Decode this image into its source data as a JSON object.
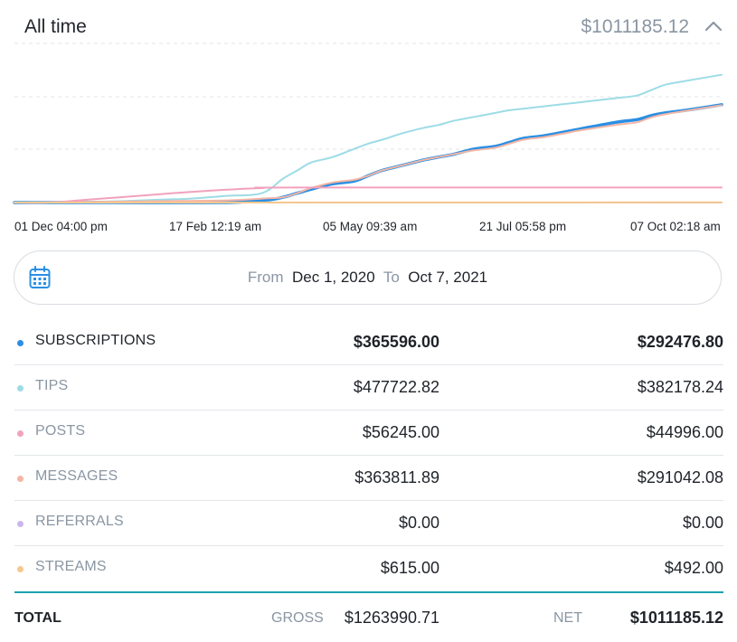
{
  "header": {
    "title": "All time",
    "total": "$1011185.12",
    "collapse_icon": "chevron-up-icon"
  },
  "chart_data": {
    "type": "line",
    "x_ticks": [
      "01 Dec 04:00 pm",
      "17 Feb 12:19 am",
      "05 May 09:39 am",
      "21 Jul 05:58 pm",
      "07 Oct 02:18 am"
    ],
    "grid": true,
    "series": [
      {
        "name": "TIPS",
        "color": "#9ddce6",
        "x": [
          0.0,
          0.05,
          0.1,
          0.15,
          0.2,
          0.25,
          0.3,
          0.35,
          0.38,
          0.4,
          0.42,
          0.45,
          0.48,
          0.5,
          0.52,
          0.55,
          0.58,
          0.6,
          0.62,
          0.65,
          0.68,
          0.7,
          0.75,
          0.8,
          0.85,
          0.88,
          0.9,
          0.92,
          0.95,
          1.0
        ],
        "values": [
          0,
          0,
          2000,
          5000,
          10000,
          15000,
          25000,
          35000,
          90000,
          120000,
          150000,
          170000,
          200000,
          220000,
          235000,
          260000,
          280000,
          290000,
          305000,
          320000,
          335000,
          345000,
          360000,
          375000,
          390000,
          400000,
          420000,
          440000,
          455000,
          477722.82
        ]
      },
      {
        "name": "SUBSCRIPTIONS",
        "color": "#2a8fe4",
        "x": [
          0.0,
          0.1,
          0.3,
          0.33,
          0.36,
          0.38,
          0.4,
          0.42,
          0.45,
          0.48,
          0.5,
          0.52,
          0.55,
          0.58,
          0.6,
          0.62,
          0.65,
          0.68,
          0.7,
          0.72,
          0.75,
          0.78,
          0.8,
          0.85,
          0.88,
          0.9,
          0.92,
          0.95,
          1.0
        ],
        "values": [
          0,
          0,
          0,
          8000,
          10000,
          20000,
          35000,
          50000,
          70000,
          80000,
          100000,
          120000,
          140000,
          160000,
          170000,
          180000,
          200000,
          210000,
          225000,
          240000,
          250000,
          265000,
          275000,
          300000,
          310000,
          325000,
          335000,
          345000,
          365596.0
        ]
      },
      {
        "name": "MESSAGES",
        "color": "#f4b6a5",
        "x": [
          0.0,
          0.1,
          0.2,
          0.3,
          0.35,
          0.38,
          0.4,
          0.42,
          0.45,
          0.48,
          0.5,
          0.52,
          0.55,
          0.58,
          0.6,
          0.62,
          0.65,
          0.68,
          0.7,
          0.72,
          0.75,
          0.78,
          0.8,
          0.85,
          0.88,
          0.9,
          0.92,
          0.95,
          1.0
        ],
        "values": [
          0,
          2000,
          5000,
          8000,
          15000,
          20000,
          35000,
          55000,
          75000,
          85000,
          100000,
          120000,
          140000,
          160000,
          170000,
          180000,
          195000,
          205000,
          220000,
          235000,
          245000,
          260000,
          270000,
          290000,
          300000,
          318000,
          330000,
          343000,
          363811.89
        ]
      },
      {
        "name": "POSTS",
        "color": "#f2a1bd",
        "x": [
          0.0,
          0.05,
          0.1,
          0.15,
          0.2,
          0.25,
          0.3,
          0.35,
          0.4,
          1.0
        ],
        "values": [
          0,
          0,
          10000,
          20000,
          30000,
          40000,
          48000,
          54000,
          56245,
          56245.0
        ]
      },
      {
        "name": "REFERRALS",
        "color": "#c9b7ec",
        "x": [
          0.0,
          1.0
        ],
        "values": [
          0,
          0
        ]
      },
      {
        "name": "STREAMS",
        "color": "#f6c88f",
        "x": [
          0.0,
          1.0
        ],
        "values": [
          0,
          615.0
        ]
      }
    ],
    "ylim": [
      0,
      480000
    ]
  },
  "date_range": {
    "icon": "calendar-icon",
    "from_label": "From",
    "from_value": "Dec 1, 2020",
    "to_label": "To",
    "to_value": "Oct 7, 2021"
  },
  "rows": [
    {
      "label": "SUBSCRIPTIONS",
      "gross": "$365596.00",
      "net": "$292476.80",
      "color": "#2a8fe4"
    },
    {
      "label": "TIPS",
      "gross": "$477722.82",
      "net": "$382178.24",
      "color": "#9ddce6"
    },
    {
      "label": "POSTS",
      "gross": "$56245.00",
      "net": "$44996.00",
      "color": "#f2a1bd"
    },
    {
      "label": "MESSAGES",
      "gross": "$363811.89",
      "net": "$291042.08",
      "color": "#f4b6a5"
    },
    {
      "label": "REFERRALS",
      "gross": "$0.00",
      "net": "$0.00",
      "color": "#c9b7ec"
    },
    {
      "label": "STREAMS",
      "gross": "$615.00",
      "net": "$492.00",
      "color": "#f6c88f"
    }
  ],
  "total": {
    "label": "TOTAL",
    "gross_label": "GROSS",
    "gross_value": "$1263990.71",
    "net_label": "NET",
    "net_value": "$1011185.12"
  }
}
